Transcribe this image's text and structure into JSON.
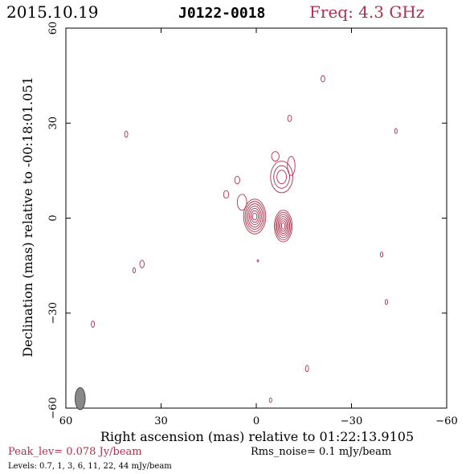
{
  "header": {
    "date": "2015.10.19",
    "source": "J0122-0018",
    "freq": "Freq: 4.3 GHz"
  },
  "chart_data": {
    "type": "contour",
    "xlabel": "Right ascension (mas) relative to 01:22:13.9105",
    "ylabel": "Declination (mas) relative to -00:18:01.051",
    "xlim": [
      60,
      -60
    ],
    "ylim": [
      -60,
      60
    ],
    "x_ticks": [
      60,
      30,
      0,
      -30,
      -60
    ],
    "x_tick_labels": [
      "60",
      "30",
      "0",
      "−30",
      "−60"
    ],
    "y_ticks": [
      -60,
      -30,
      0,
      30,
      60
    ],
    "y_tick_labels": [
      "−60",
      "−30",
      "0",
      "30",
      "60"
    ],
    "contour_levels_mjy_per_beam": [
      0.7,
      1,
      3,
      6,
      11,
      22,
      44
    ],
    "components": [
      {
        "x": 0.5,
        "y": 0.5,
        "rx": 3.5,
        "ry": 5.5,
        "levels": 7
      },
      {
        "x": -8.5,
        "y": -2.5,
        "rx": 2.8,
        "ry": 5.0,
        "levels": 7
      },
      {
        "x": -8.0,
        "y": 13.0,
        "rx": 3.5,
        "ry": 5.0,
        "levels": 3
      },
      {
        "x": -6.0,
        "y": 19.5,
        "rx": 1.2,
        "ry": 1.5,
        "levels": 1
      },
      {
        "x": -11.0,
        "y": 16.5,
        "rx": 1.2,
        "ry": 3.0,
        "levels": 1
      },
      {
        "x": 4.5,
        "y": 5.0,
        "rx": 1.5,
        "ry": 2.5,
        "levels": 1
      },
      {
        "x": 9.5,
        "y": 7.5,
        "rx": 0.8,
        "ry": 1.2,
        "levels": 1
      },
      {
        "x": 6.0,
        "y": 12.0,
        "rx": 0.8,
        "ry": 1.2,
        "levels": 1
      },
      {
        "x": -21.0,
        "y": 44.0,
        "rx": 0.6,
        "ry": 1.0,
        "levels": 1
      },
      {
        "x": -10.5,
        "y": 31.5,
        "rx": 0.6,
        "ry": 1.0,
        "levels": 1
      },
      {
        "x": 41.0,
        "y": 26.5,
        "rx": 0.5,
        "ry": 1.0,
        "levels": 1
      },
      {
        "x": -44.0,
        "y": 27.5,
        "rx": 0.4,
        "ry": 0.8,
        "levels": 1
      },
      {
        "x": 36.0,
        "y": -14.5,
        "rx": 0.7,
        "ry": 1.2,
        "levels": 1
      },
      {
        "x": 38.5,
        "y": -16.5,
        "rx": 0.4,
        "ry": 0.8,
        "levels": 1
      },
      {
        "x": -39.5,
        "y": -11.5,
        "rx": 0.4,
        "ry": 0.8,
        "levels": 1
      },
      {
        "x": 51.5,
        "y": -33.5,
        "rx": 0.5,
        "ry": 1.0,
        "levels": 1
      },
      {
        "x": -41.0,
        "y": -26.5,
        "rx": 0.4,
        "ry": 0.8,
        "levels": 1
      },
      {
        "x": -16.0,
        "y": -47.5,
        "rx": 0.5,
        "ry": 1.0,
        "levels": 1
      },
      {
        "x": -4.5,
        "y": -57.5,
        "rx": 0.4,
        "ry": 0.7,
        "levels": 1
      },
      {
        "x": -0.5,
        "y": -13.5,
        "rx": 0.2,
        "ry": 0.3,
        "levels": 1
      }
    ],
    "beam": {
      "x": 55.5,
      "y": -57.0,
      "major": 3.5,
      "minor": 1.6,
      "color": "#888888"
    },
    "contour_color": "#b0304c"
  },
  "footer": {
    "peak": "Peak_lev=  0.078 Jy/beam",
    "rms": "Rms_noise=  0.1 mJy/beam",
    "levels": "Levels: 0.7,   1,   3,   6,  11,  22,  44 mJy/beam"
  },
  "colors": {
    "accent": "#b0304c",
    "text": "#000000"
  }
}
